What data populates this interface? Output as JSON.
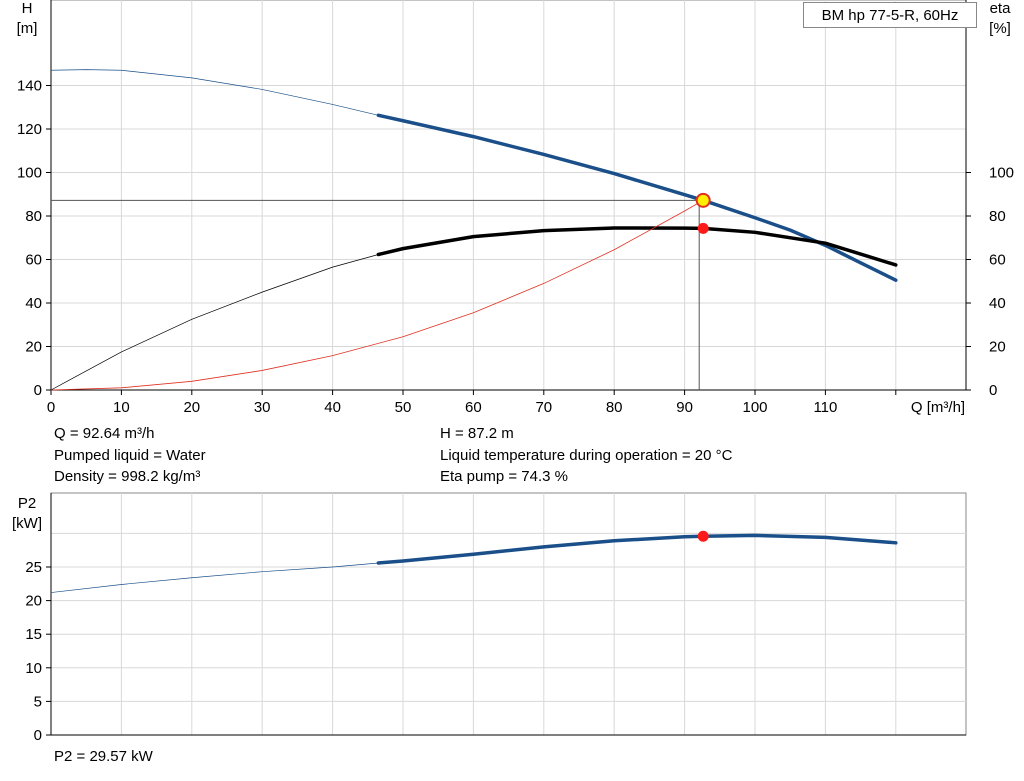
{
  "pump_label": "BM hp 77-5-R, 60Hz",
  "info": {
    "q": "Q = 92.64 m³/h",
    "liquid": "Pumped liquid = Water",
    "density": "Density = 998.2 kg/m³",
    "h": "H = 87.2 m",
    "temp": "Liquid temperature during operation = 20 °C",
    "eta": "Eta pump = 74.3 %",
    "p2": "P2 = 29.57 kW"
  },
  "chart_data": [
    {
      "type": "line",
      "title": "BM hp 77-5-R, 60Hz",
      "xlabel": "Q [m³/h]",
      "ylabel": "H\n[m]",
      "y2label": "eta\n[%]",
      "xlim": [
        0,
        130
      ],
      "ylim": [
        0,
        160
      ],
      "y2lim": [
        0,
        160
      ],
      "xticks": [
        0,
        10,
        20,
        30,
        40,
        50,
        60,
        70,
        80,
        90,
        100,
        110
      ],
      "yticks": [
        0,
        20,
        40,
        60,
        80,
        100,
        120,
        140
      ],
      "y2ticks": [
        0,
        20,
        40,
        60,
        80,
        100
      ],
      "grid": true,
      "series": [
        {
          "key": "head",
          "axis": "left",
          "color": "#1a4f8a",
          "x": [
            0,
            5,
            10,
            20,
            30,
            40,
            46.5,
            50,
            60,
            70,
            80,
            90,
            92.64,
            100,
            105,
            110,
            115,
            120
          ],
          "y": [
            147,
            147.3,
            147,
            143.5,
            138.2,
            131.3,
            126.3,
            123.8,
            116.5,
            108.3,
            99.5,
            89.8,
            87.2,
            79.2,
            73.5,
            66.5,
            58.5,
            50.5
          ],
          "thick_from": 46.5
        },
        {
          "key": "eta",
          "axis": "right",
          "color": "#000000",
          "x": [
            0,
            10,
            20,
            30,
            40,
            46.5,
            50,
            60,
            70,
            80,
            90,
            92.64,
            100,
            110,
            120
          ],
          "y": [
            0,
            17.5,
            32.5,
            45,
            56.5,
            62.3,
            65,
            70.5,
            73.3,
            74.5,
            74.4,
            74.3,
            72.5,
            67.5,
            57.5
          ],
          "thick_from": 46.5
        },
        {
          "key": "system",
          "axis": "left",
          "color": "#e03020",
          "x": [
            0,
            10,
            20,
            30,
            40,
            50,
            60,
            70,
            80,
            90,
            92.64
          ],
          "y": [
            0,
            1,
            4,
            9,
            15.8,
            24.5,
            35.5,
            49,
            64.5,
            82.3,
            87.2
          ],
          "thick_from": null
        }
      ],
      "operating_point": {
        "q": 92.64,
        "h": 87.2,
        "eta": 74.3
      }
    },
    {
      "type": "line",
      "xlabel": "",
      "ylabel": "P2\n[kW]",
      "xlim": [
        0,
        130
      ],
      "ylim": [
        0,
        32
      ],
      "yticks": [
        0,
        5,
        10,
        15,
        20,
        25
      ],
      "grid": true,
      "series": [
        {
          "key": "p2",
          "axis": "left",
          "color": "#1a4f8a",
          "x": [
            0,
            10,
            20,
            30,
            40,
            46.5,
            50,
            60,
            70,
            80,
            90,
            92.64,
            100,
            110,
            120
          ],
          "y": [
            21.2,
            22.4,
            23.4,
            24.3,
            25.0,
            25.6,
            25.9,
            26.9,
            28.0,
            28.9,
            29.5,
            29.57,
            29.7,
            29.4,
            28.6
          ],
          "thick_from": 46.5
        }
      ],
      "operating_point": {
        "q": 92.64,
        "p2": 29.57
      }
    }
  ]
}
